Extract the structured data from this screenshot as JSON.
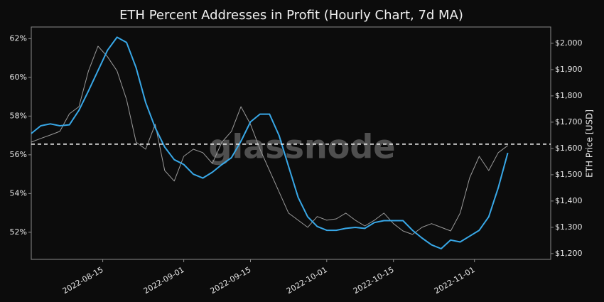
{
  "chart_data": {
    "type": "line",
    "title": "ETH Percent Addresses in Profit (Hourly Chart, 7d MA)",
    "y2_label": "ETH Price [USD]",
    "watermark": "glassnode",
    "x": [
      "2022-07-31",
      "2022-08-02",
      "2022-08-04",
      "2022-08-06",
      "2022-08-08",
      "2022-08-10",
      "2022-08-12",
      "2022-08-14",
      "2022-08-16",
      "2022-08-18",
      "2022-08-20",
      "2022-08-22",
      "2022-08-24",
      "2022-08-26",
      "2022-08-28",
      "2022-08-30",
      "2022-09-01",
      "2022-09-03",
      "2022-09-05",
      "2022-09-07",
      "2022-09-09",
      "2022-09-11",
      "2022-09-13",
      "2022-09-15",
      "2022-09-17",
      "2022-09-19",
      "2022-09-21",
      "2022-09-23",
      "2022-09-25",
      "2022-09-27",
      "2022-09-29",
      "2022-10-01",
      "2022-10-03",
      "2022-10-05",
      "2022-10-07",
      "2022-10-09",
      "2022-10-11",
      "2022-10-13",
      "2022-10-15",
      "2022-10-17",
      "2022-10-19",
      "2022-10-21",
      "2022-10-23",
      "2022-10-25",
      "2022-10-27",
      "2022-10-29",
      "2022-10-31",
      "2022-11-02",
      "2022-11-04",
      "2022-11-06",
      "2022-11-08"
    ],
    "series": [
      {
        "color": "#9a9a9a",
        "axis": "y2",
        "values": [
          1624,
          1638,
          1651,
          1665,
          1732,
          1759,
          1895,
          1989,
          1949,
          1895,
          1786,
          1624,
          1597,
          1692,
          1516,
          1476,
          1570,
          1597,
          1584,
          1543,
          1624,
          1665,
          1759,
          1692,
          1597,
          1516,
          1435,
          1354,
          1327,
          1300,
          1341,
          1327,
          1332,
          1354,
          1327,
          1305,
          1327,
          1354,
          1314,
          1286,
          1273,
          1300,
          1314,
          1300,
          1286,
          1354,
          1489,
          1570,
          1516,
          1584,
          1611
        ]
      },
      {
        "color": "#38a8e8",
        "axis": "y",
        "values": [
          57.1,
          57.5,
          57.6,
          57.5,
          57.55,
          58.3,
          59.3,
          60.35,
          61.4,
          62.07,
          61.8,
          60.5,
          58.7,
          57.4,
          56.4,
          55.75,
          55.5,
          55.0,
          54.8,
          55.1,
          55.5,
          55.85,
          56.7,
          57.7,
          58.1,
          58.1,
          57.0,
          55.4,
          53.8,
          52.8,
          52.3,
          52.1,
          52.1,
          52.2,
          52.25,
          52.2,
          52.5,
          52.6,
          52.6,
          52.6,
          52.1,
          51.7,
          51.35,
          51.15,
          51.6,
          51.5,
          51.8,
          52.1,
          52.8,
          54.3,
          56.1
        ]
      }
    ],
    "hline": 56.55,
    "xlim": [
      "2022-07-31",
      "2022-11-17"
    ],
    "xticks": [
      "2022-08-15",
      "2022-09-01",
      "2022-09-15",
      "2022-10-01",
      "2022-10-15",
      "2022-11-01"
    ],
    "ylim": [
      50.6,
      62.6
    ],
    "yticks": [
      {
        "value": 52,
        "label": "52%"
      },
      {
        "value": 54,
        "label": "54%"
      },
      {
        "value": 56,
        "label": "56%"
      },
      {
        "value": 58,
        "label": "58%"
      },
      {
        "value": 60,
        "label": "60%"
      },
      {
        "value": 62,
        "label": "62%"
      }
    ],
    "y2lim": [
      1178,
      2062
    ],
    "y2ticks": [
      {
        "value": 1200,
        "label": "$1,200"
      },
      {
        "value": 1300,
        "label": "$1,300"
      },
      {
        "value": 1400,
        "label": "$1,400"
      },
      {
        "value": 1500,
        "label": "$1,500"
      },
      {
        "value": 1600,
        "label": "$1,600"
      },
      {
        "value": 1700,
        "label": "$1,700"
      },
      {
        "value": 1800,
        "label": "$1,800"
      },
      {
        "value": 1900,
        "label": "$1,900"
      },
      {
        "value": 2000,
        "label": "$2,000"
      }
    ]
  }
}
